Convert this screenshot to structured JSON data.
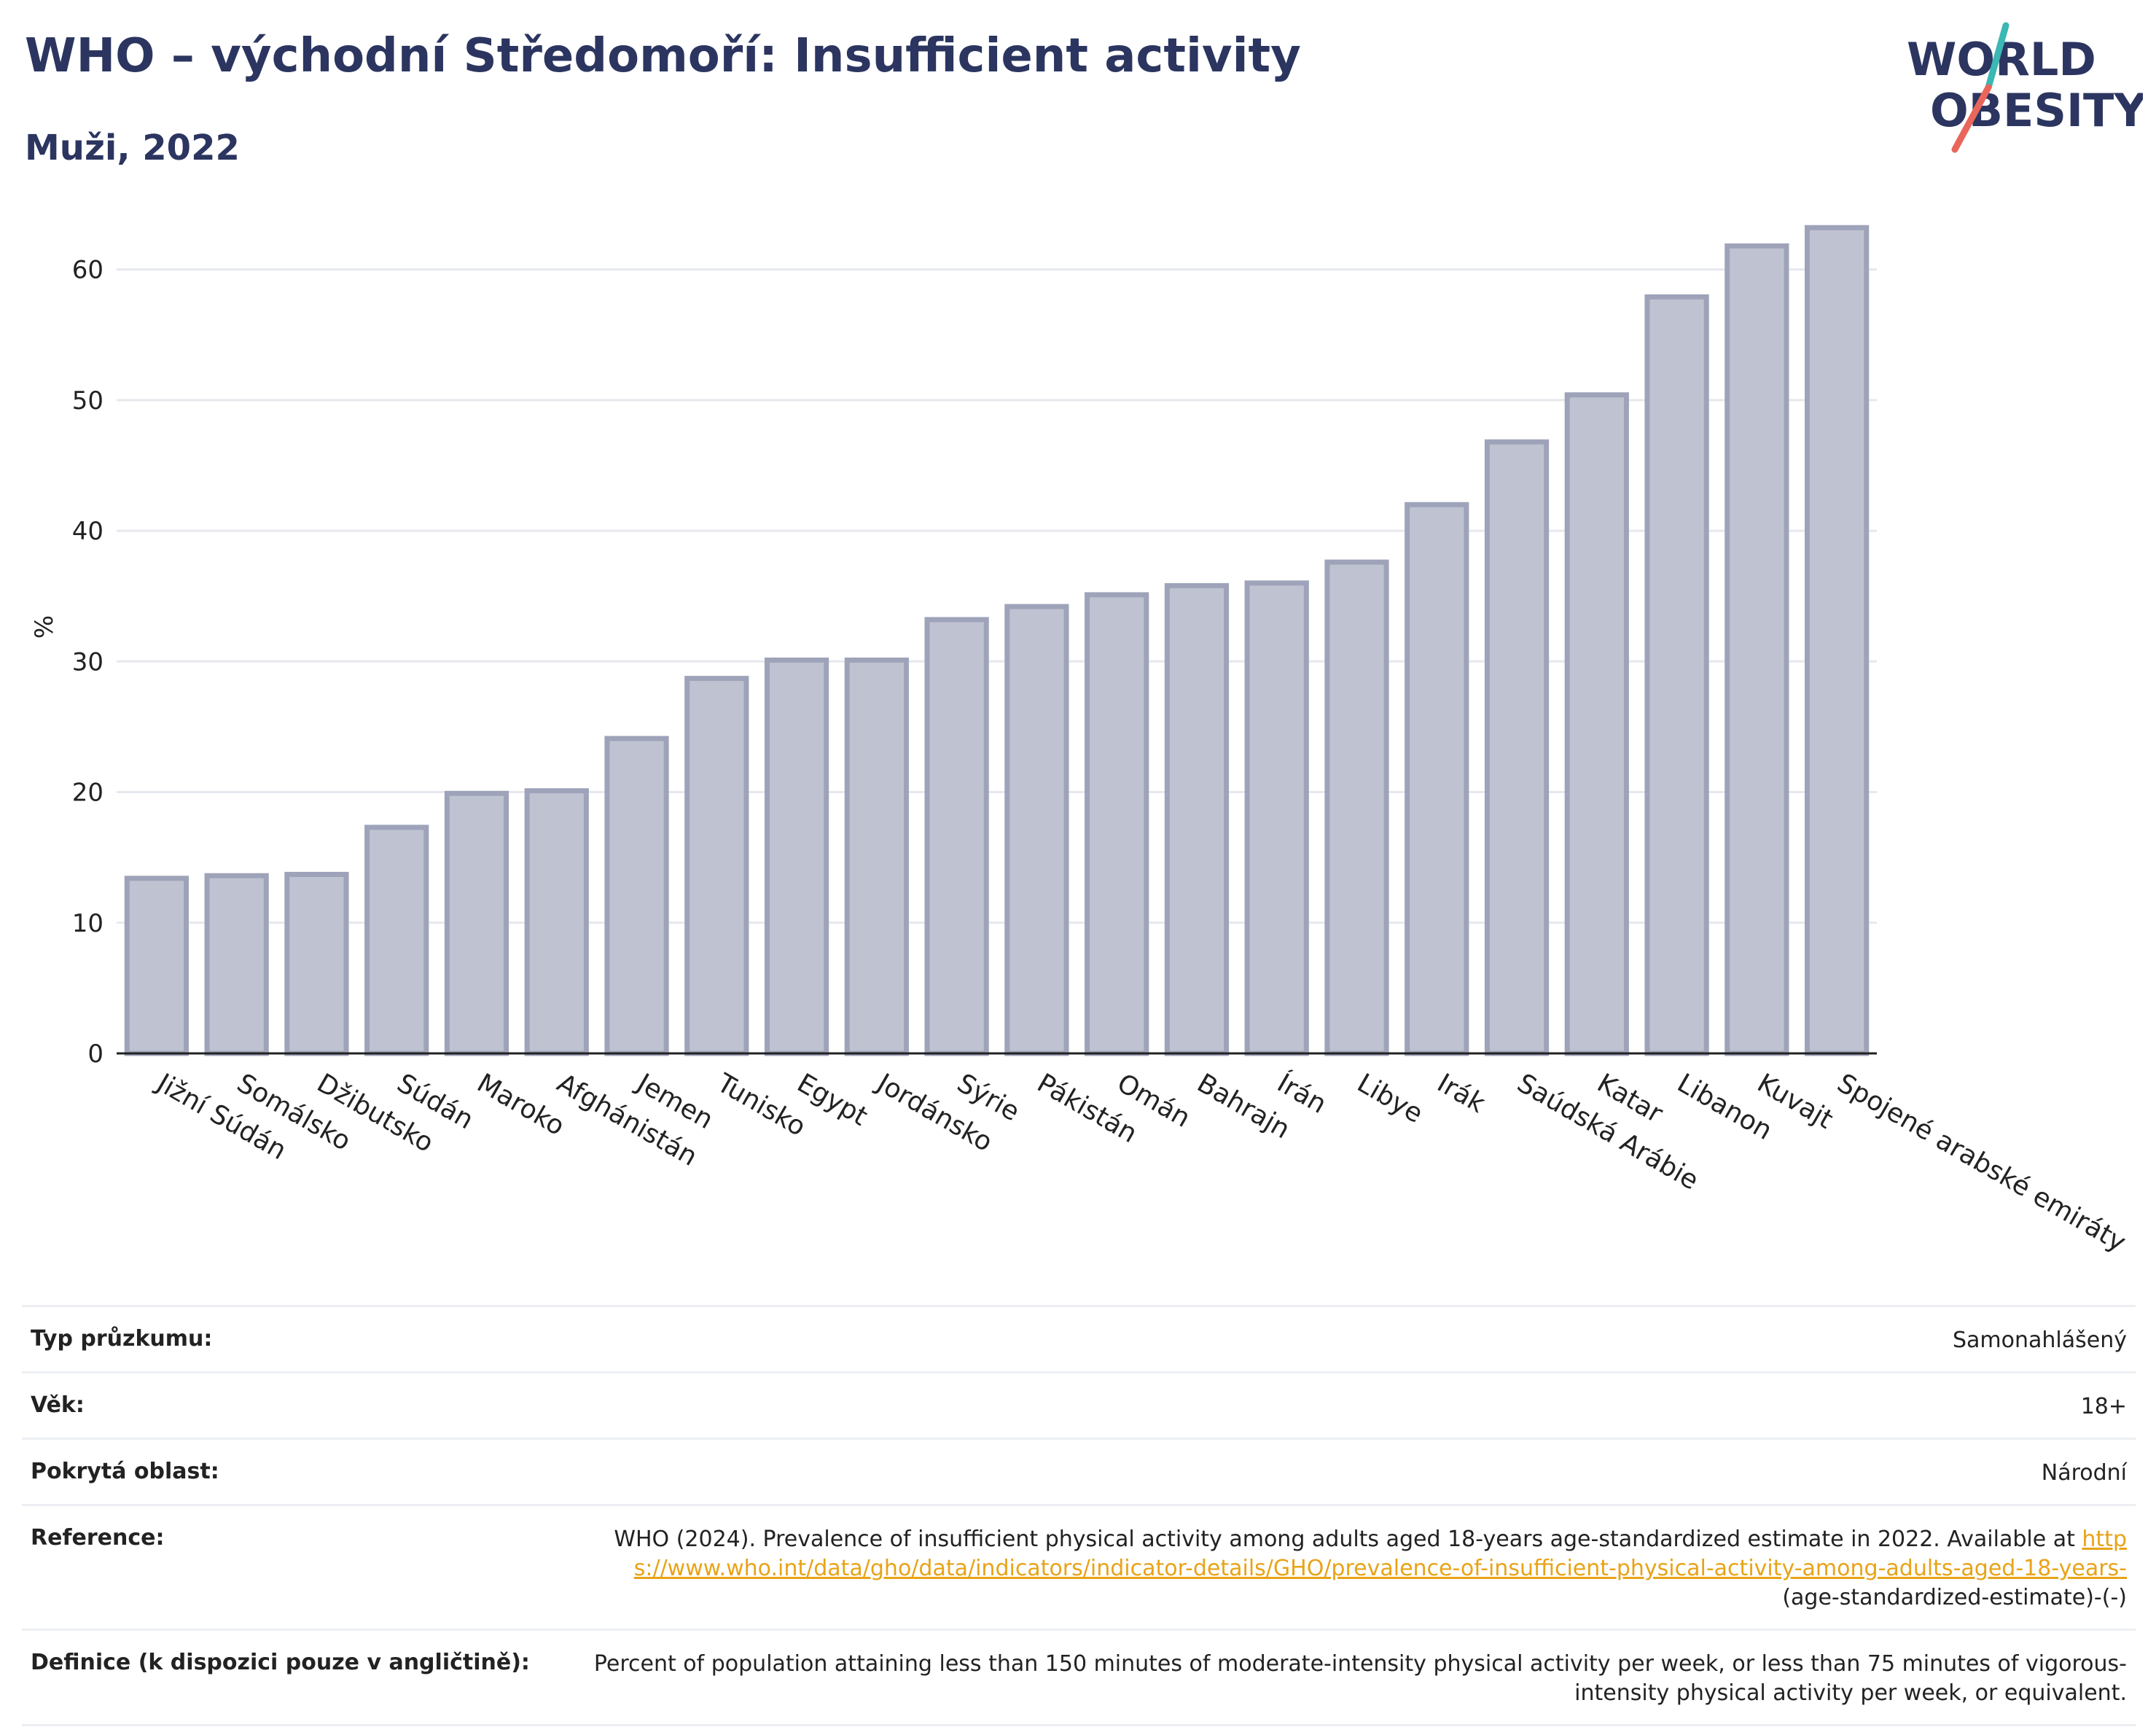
{
  "header": {
    "title": "WHO – východní Středomoří: Insufficient activity",
    "subtitle": "Muži, 2022"
  },
  "logo": {
    "line1": "WORLD",
    "line2": "OBESITY",
    "colors": {
      "text": "#2b3560",
      "slash_teal": "#3bb7b4",
      "slash_red": "#e8665a"
    }
  },
  "chart_data": {
    "type": "bar",
    "title": "",
    "xlabel": "",
    "ylabel": "%",
    "ylim": [
      0,
      65
    ],
    "yticks": [
      0,
      10,
      20,
      30,
      40,
      50,
      60
    ],
    "grid": true,
    "bar_color": "#bfc3d1",
    "bar_edge_color": "#9ea3b9",
    "categories": [
      "Jižní Súdán",
      "Somálsko",
      "Džibutsko",
      "Súdán",
      "Maroko",
      "Afghánistán",
      "Jemen",
      "Tunisko",
      "Egypt",
      "Jordánsko",
      "Sýrie",
      "Pákistán",
      "Omán",
      "Bahrajn",
      "Írán",
      "Libye",
      "Irák",
      "Saúdská Arábie",
      "Katar",
      "Libanon",
      "Kuvajt",
      "Spojené arabské emiráty"
    ],
    "values": [
      13.4,
      13.6,
      13.7,
      17.3,
      19.9,
      20.1,
      24.1,
      28.7,
      30.1,
      30.1,
      33.2,
      34.2,
      35.1,
      35.8,
      36.0,
      37.6,
      42.0,
      46.8,
      50.4,
      57.9,
      61.8,
      63.2
    ]
  },
  "info": {
    "survey_type": {
      "label": "Typ průzkumu:",
      "value": "Samonahlášený"
    },
    "age": {
      "label": "Věk:",
      "value": "18+"
    },
    "coverage": {
      "label": "Pokrytá oblast:",
      "value": "Národní"
    },
    "reference": {
      "label": "Reference:",
      "text": "WHO (2024). Prevalence of insufficient physical activity among adults aged 18-years age-standardized estimate in 2022. Available at",
      "link": "https://www.who.int/data/gho/data/indicators/indicator-details/GHO/prevalence-of-insufficient-physical-activity-among-adults-aged-18-years-",
      "suffix": "(age-standardized-estimate)-(-)"
    },
    "definition": {
      "label": "Definice (k dispozici pouze v angličtině):",
      "value": "Percent of population attaining less than 150 minutes of moderate-intensity physical activity per week, or less than 75 minutes of vigorous-intensity physical activity per week, or equivalent."
    }
  }
}
